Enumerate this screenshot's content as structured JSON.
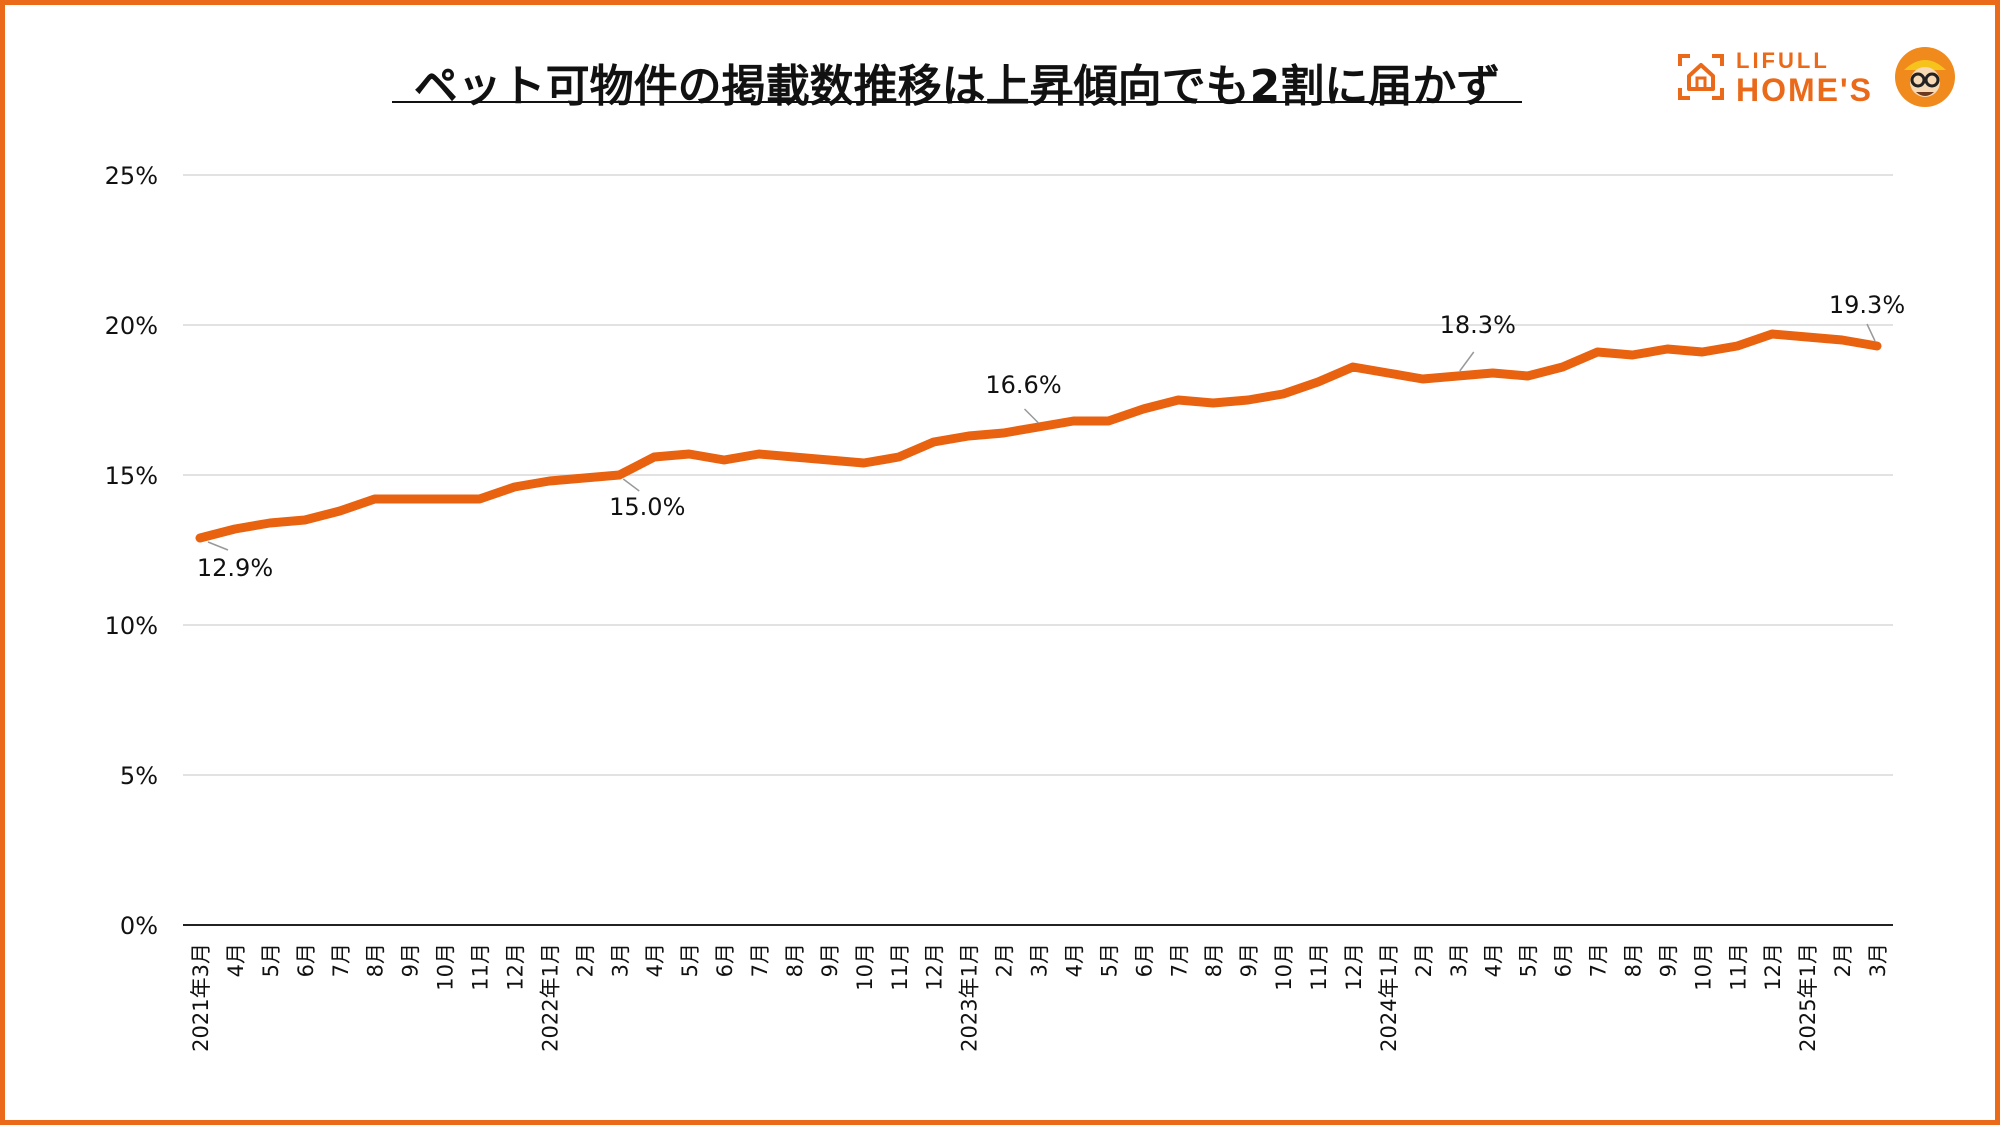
{
  "title": "ペット可物件の掲載数推移は上昇傾向でも2割に届かず",
  "logo": {
    "line1": "LIFULL",
    "line2": "HOME'S",
    "icon": "house-icon",
    "mascot": "mascot-icon"
  },
  "colors": {
    "accent": "#ea6a1a",
    "line": "#e8620f",
    "grid": "#d9d9d9",
    "text": "#111111"
  },
  "chart_data": {
    "type": "line",
    "title": "ペット可物件の掲載数推移は上昇傾向でも2割に届かず",
    "xlabel": "",
    "ylabel": "",
    "ylim": [
      0,
      25
    ],
    "grid": true,
    "legend": "none",
    "yticks": [
      "0%",
      "5%",
      "10%",
      "15%",
      "20%",
      "25%"
    ],
    "categories": [
      "2021年3月",
      "4月",
      "5月",
      "6月",
      "7月",
      "8月",
      "9月",
      "10月",
      "11月",
      "12月",
      "2022年1月",
      "2月",
      "3月",
      "4月",
      "5月",
      "6月",
      "7月",
      "8月",
      "9月",
      "10月",
      "11月",
      "12月",
      "2023年1月",
      "2月",
      "3月",
      "4月",
      "5月",
      "6月",
      "7月",
      "8月",
      "9月",
      "10月",
      "11月",
      "12月",
      "2024年1月",
      "2月",
      "3月",
      "4月",
      "5月",
      "6月",
      "7月",
      "8月",
      "9月",
      "10月",
      "11月",
      "12月",
      "2025年1月",
      "2月",
      "3月"
    ],
    "series": [
      {
        "values": [
          12.9,
          13.2,
          13.4,
          13.5,
          13.8,
          14.2,
          14.2,
          14.2,
          14.2,
          14.6,
          14.8,
          14.9,
          15.0,
          15.6,
          15.7,
          15.5,
          15.7,
          15.6,
          15.5,
          15.4,
          15.6,
          16.1,
          16.3,
          16.4,
          16.6,
          16.8,
          16.8,
          17.2,
          17.5,
          17.4,
          17.5,
          17.7,
          18.1,
          18.6,
          18.4,
          18.2,
          18.3,
          18.4,
          18.3,
          18.6,
          19.1,
          19.0,
          19.2,
          19.1,
          19.3,
          19.7,
          19.6,
          19.5,
          19.3
        ]
      }
    ],
    "data_labels": [
      {
        "index": 0,
        "text": "12.9%"
      },
      {
        "index": 12,
        "text": "15.0%"
      },
      {
        "index": 24,
        "text": "16.6%"
      },
      {
        "index": 36,
        "text": "18.3%"
      },
      {
        "index": 48,
        "text": "19.3%"
      }
    ]
  }
}
